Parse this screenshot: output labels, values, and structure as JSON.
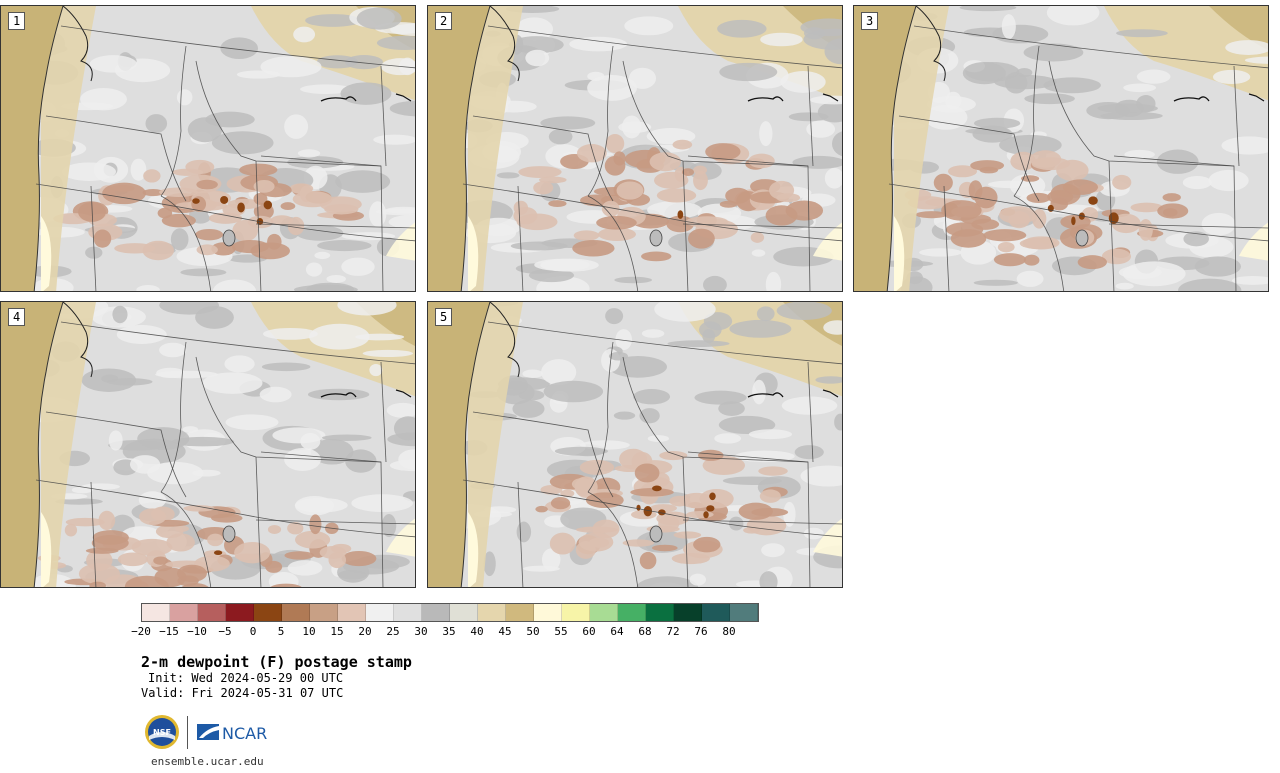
{
  "panels": [
    {
      "label": "1"
    },
    {
      "label": "2"
    },
    {
      "label": "3"
    },
    {
      "label": "4"
    },
    {
      "label": "5"
    }
  ],
  "colorbar": {
    "colors": [
      "#f5e6e2",
      "#d9a1a0",
      "#b65f5e",
      "#8c1a1f",
      "#8b4513",
      "#b07a55",
      "#c8a085",
      "#e2c5b5",
      "#f0f0f0",
      "#e0e0e0",
      "#b9b9b9",
      "#e0e0d6",
      "#e5d6ad",
      "#d0b97e",
      "#fff9d9",
      "#f7f4a8",
      "#a8dc94",
      "#46b065",
      "#0a7040",
      "#07402a",
      "#1f5a5a",
      "#517c7c"
    ],
    "ticks": [
      "−20",
      "−15",
      "−10",
      "−5",
      "0",
      "5",
      "10",
      "15",
      "20",
      "25",
      "30",
      "35",
      "40",
      "45",
      "50",
      "55",
      "60",
      "64",
      "68",
      "72",
      "76",
      "80"
    ]
  },
  "title": "2-m dewpoint (F) postage stamp",
  "init": "Init: Wed 2024-05-29 00 UTC",
  "valid": "Valid: Fri 2024-05-31 07 UTC",
  "logo": {
    "nsf_text": "NSF",
    "ncar_text": "NCAR"
  },
  "url": "ensemble.ucar.edu",
  "map_colors": {
    "ocean": "#c8b377",
    "land_base": "#dedede",
    "gray_patch": "#bdbdbd",
    "light_patch": "#efefef",
    "tan_patch": "#e3d5ad",
    "brown_light": "#dcc0b0",
    "brown_mid": "#c79a83",
    "brown_dark": "#8b4513",
    "yellow": "#fffadc",
    "border": "#444444"
  }
}
